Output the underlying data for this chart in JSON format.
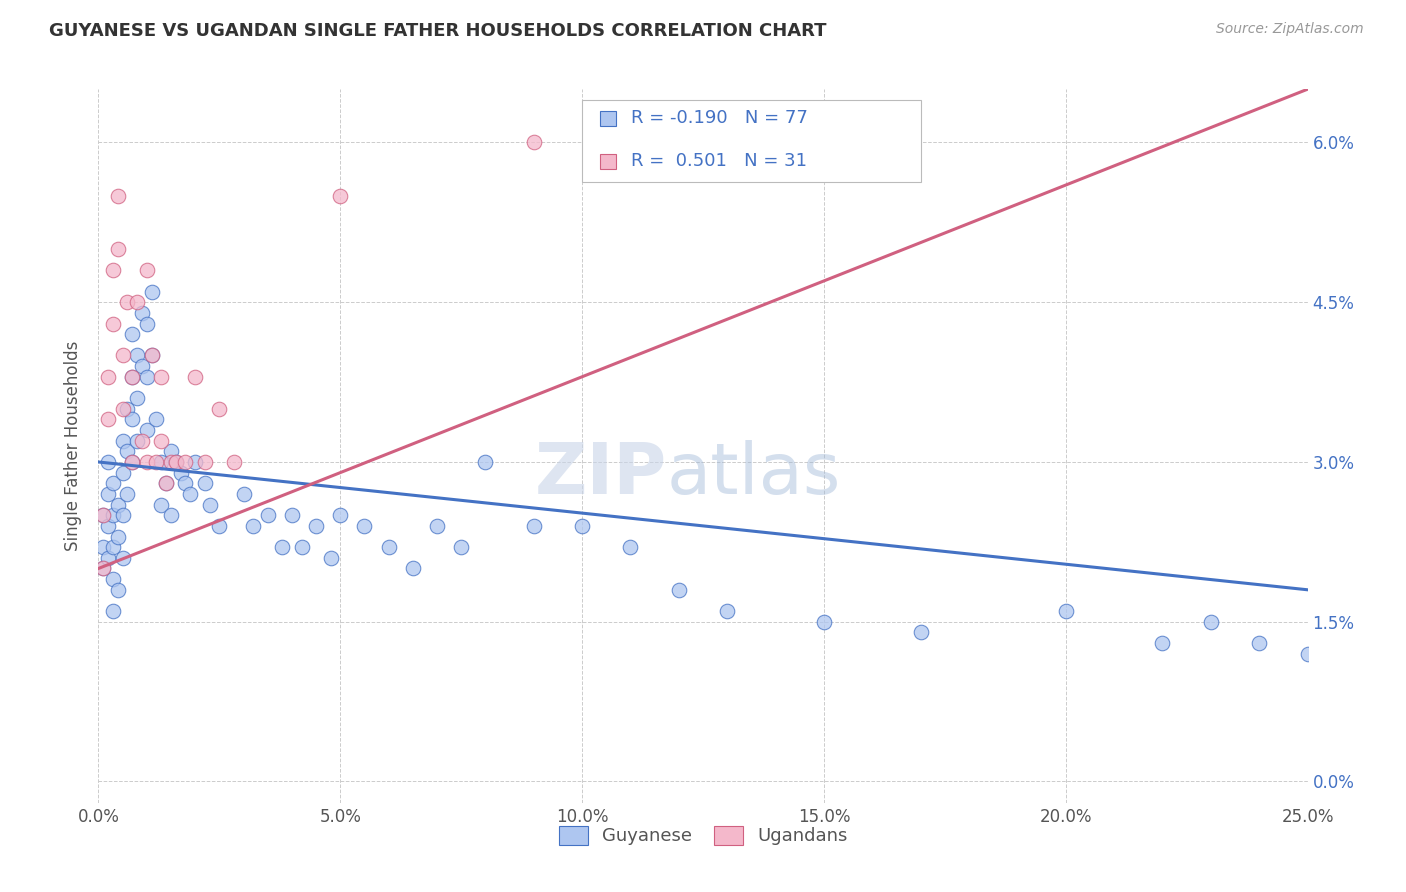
{
  "title": "GUYANESE VS UGANDAN SINGLE FATHER HOUSEHOLDS CORRELATION CHART",
  "source": "Source: ZipAtlas.com",
  "xlabel_ticks": [
    "0.0%",
    "5.0%",
    "10.0%",
    "15.0%",
    "20.0%",
    "25.0%"
  ],
  "ylabel_ticks": [
    "0.0%",
    "1.5%",
    "3.0%",
    "4.5%",
    "6.0%"
  ],
  "ylabel_label": "Single Father Households",
  "xlim": [
    0.0,
    0.25
  ],
  "ylim": [
    -0.002,
    0.065
  ],
  "legend_R1": "R = -0.190",
  "legend_N1": "N = 77",
  "legend_R2": "R =  0.501",
  "legend_N2": "N = 31",
  "guyanese_x": [
    0.001,
    0.001,
    0.001,
    0.002,
    0.002,
    0.002,
    0.002,
    0.003,
    0.003,
    0.003,
    0.003,
    0.003,
    0.004,
    0.004,
    0.004,
    0.005,
    0.005,
    0.005,
    0.005,
    0.006,
    0.006,
    0.006,
    0.007,
    0.007,
    0.007,
    0.007,
    0.008,
    0.008,
    0.008,
    0.009,
    0.009,
    0.01,
    0.01,
    0.01,
    0.011,
    0.011,
    0.012,
    0.013,
    0.013,
    0.014,
    0.015,
    0.015,
    0.016,
    0.017,
    0.018,
    0.019,
    0.02,
    0.022,
    0.023,
    0.025,
    0.03,
    0.032,
    0.035,
    0.038,
    0.04,
    0.042,
    0.045,
    0.048,
    0.05,
    0.055,
    0.06,
    0.065,
    0.07,
    0.075,
    0.08,
    0.09,
    0.1,
    0.11,
    0.12,
    0.13,
    0.15,
    0.17,
    0.2,
    0.22,
    0.23,
    0.24,
    0.25
  ],
  "guyanese_y": [
    0.025,
    0.022,
    0.02,
    0.03,
    0.027,
    0.024,
    0.021,
    0.028,
    0.025,
    0.022,
    0.019,
    0.016,
    0.026,
    0.023,
    0.018,
    0.032,
    0.029,
    0.025,
    0.021,
    0.035,
    0.031,
    0.027,
    0.042,
    0.038,
    0.034,
    0.03,
    0.04,
    0.036,
    0.032,
    0.044,
    0.039,
    0.043,
    0.038,
    0.033,
    0.046,
    0.04,
    0.034,
    0.03,
    0.026,
    0.028,
    0.031,
    0.025,
    0.03,
    0.029,
    0.028,
    0.027,
    0.03,
    0.028,
    0.026,
    0.024,
    0.027,
    0.024,
    0.025,
    0.022,
    0.025,
    0.022,
    0.024,
    0.021,
    0.025,
    0.024,
    0.022,
    0.02,
    0.024,
    0.022,
    0.03,
    0.024,
    0.024,
    0.022,
    0.018,
    0.016,
    0.015,
    0.014,
    0.016,
    0.013,
    0.015,
    0.013,
    0.012
  ],
  "ugandan_x": [
    0.001,
    0.001,
    0.002,
    0.002,
    0.003,
    0.003,
    0.004,
    0.004,
    0.005,
    0.005,
    0.006,
    0.007,
    0.007,
    0.008,
    0.009,
    0.01,
    0.01,
    0.011,
    0.012,
    0.013,
    0.013,
    0.014,
    0.015,
    0.016,
    0.018,
    0.02,
    0.022,
    0.025,
    0.028,
    0.05,
    0.09
  ],
  "ugandan_y": [
    0.025,
    0.02,
    0.038,
    0.034,
    0.048,
    0.043,
    0.055,
    0.05,
    0.04,
    0.035,
    0.045,
    0.03,
    0.038,
    0.045,
    0.032,
    0.048,
    0.03,
    0.04,
    0.03,
    0.038,
    0.032,
    0.028,
    0.03,
    0.03,
    0.03,
    0.038,
    0.03,
    0.035,
    0.03,
    0.055,
    0.06
  ],
  "blue_line_x": [
    0.0,
    0.25
  ],
  "blue_line_y": [
    0.03,
    0.018
  ],
  "pink_line_x": [
    0.0,
    0.25
  ],
  "pink_line_y": [
    0.02,
    0.065
  ],
  "guyanese_color": "#aec6f0",
  "ugandan_color": "#f4b8cb",
  "blue_line_color": "#4472c4",
  "pink_line_color": "#d06080",
  "watermark_zip": "ZIP",
  "watermark_atlas": "atlas",
  "background_color": "#ffffff",
  "grid_color": "#cccccc"
}
